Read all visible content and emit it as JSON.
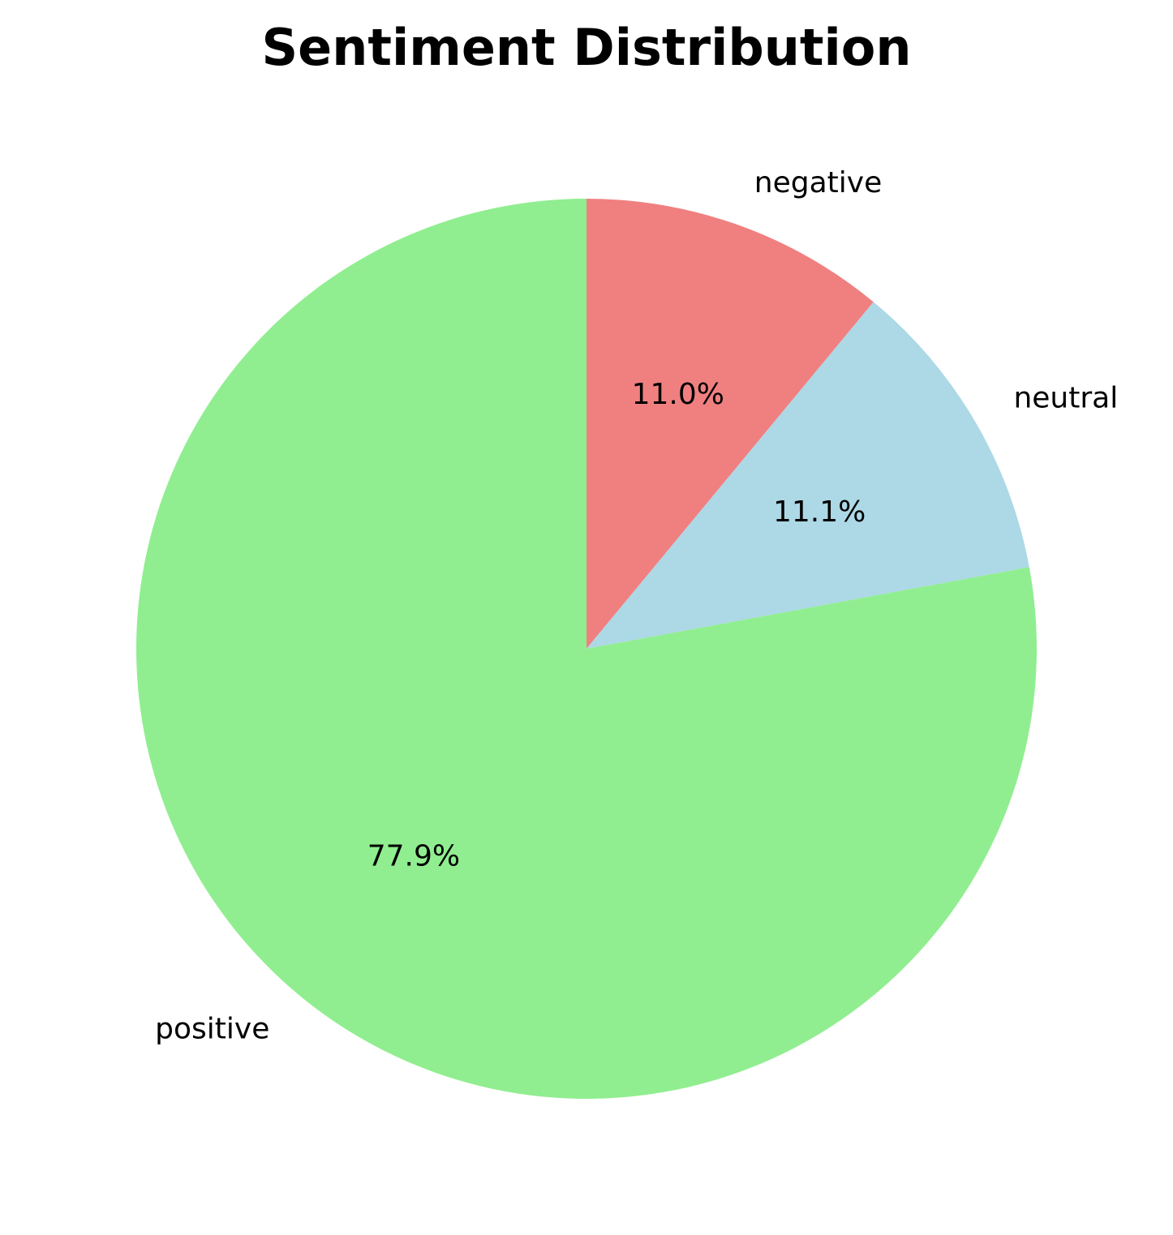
{
  "chart_data": {
    "type": "pie",
    "title": "Sentiment Distribution",
    "start_angle_deg": 90,
    "direction": "clockwise",
    "slices": [
      {
        "label": "negative",
        "value": 11.0,
        "pct_label": "11.0%",
        "color": "#f08080"
      },
      {
        "label": "neutral",
        "value": 11.1,
        "pct_label": "11.1%",
        "color": "#add8e6"
      },
      {
        "label": "positive",
        "value": 77.9,
        "pct_label": "77.9%",
        "color": "#90ee90"
      }
    ]
  }
}
